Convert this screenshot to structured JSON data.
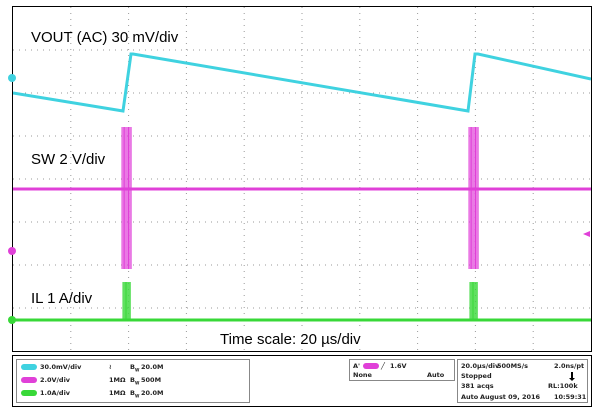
{
  "traces": {
    "vout_label": "VOUT (AC) 30 mV/div",
    "sw_label": "SW 2 V/div",
    "il_label": "IL 1 A/div",
    "timescale_label": "Time scale: 20 µs/div"
  },
  "colors": {
    "ch1": "#3fd2e0",
    "ch2": "#e040d8",
    "ch3": "#38d838",
    "grid": "#9a9a9a"
  },
  "status_bar": {
    "channels": [
      {
        "badge": "C1",
        "scale": "30.0mV/div",
        "coupling": "≀",
        "bw": "20.0M",
        "color": "#3fd2e0"
      },
      {
        "badge": "C2",
        "scale": "2.0V/div",
        "coupling": "1MΩ",
        "bw": "500M",
        "color": "#e040d8"
      },
      {
        "badge": "C3",
        "scale": "1.0A/div",
        "coupling": "1MΩ",
        "bw": "20.0M",
        "color": "#38d838"
      }
    ],
    "trigger": {
      "label": "A'",
      "badge": "C2",
      "slope": "╱",
      "level": "1.6V",
      "source": "None",
      "mode": "Auto"
    },
    "acquisition": {
      "timebase": "20.0µs/div",
      "sample_rate": "500MS/s",
      "resolution": "2.0ns/pt",
      "state": "Stopped",
      "acqs": "381 acqs",
      "record_length": "RL:100k",
      "mode": "Auto",
      "date": "August 09, 2016",
      "time": "10:59:31"
    }
  }
}
